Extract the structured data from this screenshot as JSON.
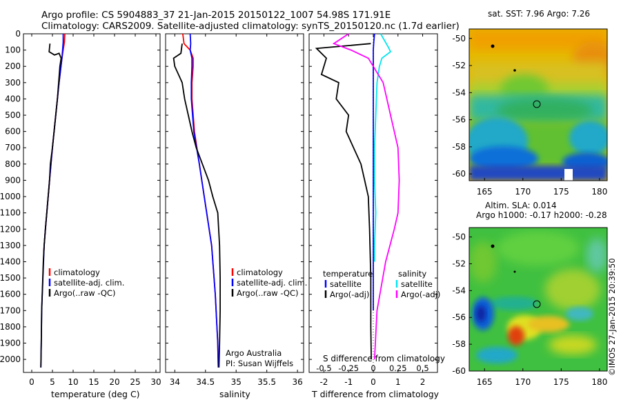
{
  "header": {
    "line1": "Argo profile: CS 5904883_37 21-Jan-2015 20150122_1007 54.98S 171.91E",
    "line2": "Climatology: CARS2009. Satellite-adjusted climatology: synTS_20150120.nc (1.7d earlier)"
  },
  "depth_ticks": [
    "0",
    "100",
    "200",
    "300",
    "400",
    "500",
    "600",
    "700",
    "800",
    "900",
    "1000",
    "1100",
    "1200",
    "1300",
    "1400",
    "1500",
    "1600",
    "1700",
    "1800",
    "1900",
    "2000"
  ],
  "colors": {
    "climatology": "#ff0000",
    "satellite": "#0000ff",
    "argo": "#000000",
    "sat_salinity": "#00e5ee",
    "argo_salinity_adj": "#ff00ff"
  },
  "chart_data": [
    {
      "type": "line",
      "xlabel": "temperature (deg C)",
      "ylabel": "",
      "xticks": [
        "0",
        "5",
        "10",
        "15",
        "20",
        "25",
        "30"
      ],
      "xlim": [
        -2,
        31
      ],
      "ylim": [
        2080,
        0
      ],
      "legend": {
        "position": "bottom-right",
        "entries": [
          "climatology",
          "satellite-adj. clim.",
          "Argo(..raw -QC)"
        ]
      },
      "series": [
        {
          "name": "climatology",
          "color": "#ff0000",
          "x": [
            8.0,
            7.9,
            7.3,
            6.6,
            5.8,
            5.0,
            4.3,
            3.8,
            3.3,
            3.0,
            2.9
          ],
          "y": [
            0,
            50,
            150,
            300,
            500,
            700,
            900,
            1050,
            1200,
            1300,
            1350
          ]
        },
        {
          "name": "satellite-adj. clim.",
          "color": "#0000ff",
          "x": [
            7.6,
            7.6,
            7.3,
            6.6,
            5.8,
            5.0,
            4.3,
            3.8,
            3.3,
            3.0,
            2.7,
            2.4,
            2.3,
            2.2
          ],
          "y": [
            0,
            50,
            150,
            300,
            500,
            700,
            900,
            1050,
            1200,
            1300,
            1500,
            1700,
            1900,
            2050
          ]
        },
        {
          "name": "Argo(..raw -QC)",
          "color": "#000000",
          "x": [
            4.4,
            4.2,
            5.5,
            6.6,
            7.1,
            6.8,
            6.5,
            6.2,
            5.8,
            5.0,
            4.5,
            4.3,
            3.8,
            3.3,
            3.0,
            2.8,
            2.6,
            2.4,
            2.3,
            2.2
          ],
          "y": [
            60,
            110,
            130,
            120,
            150,
            200,
            300,
            400,
            500,
            700,
            800,
            900,
            1050,
            1200,
            1300,
            1400,
            1550,
            1700,
            1900,
            2050
          ]
        }
      ]
    },
    {
      "type": "line",
      "xlabel": "salinity",
      "ylabel": "",
      "xticks": [
        "34",
        "34.5",
        "35",
        "35.5",
        "36"
      ],
      "xlim": [
        33.85,
        36.1
      ],
      "ylim": [
        2080,
        0
      ],
      "legend": {
        "position": "bottom-right",
        "entries": [
          "climatology",
          "satellite-adj. clim.",
          "Argo(..raw -QC)"
        ]
      },
      "annotations": [
        "Argo Australia",
        "PI: Susan Wijffels"
      ],
      "series": [
        {
          "name": "climatology",
          "color": "#ff0000",
          "x": [
            34.13,
            34.15,
            34.25,
            34.3,
            34.3,
            34.28,
            34.28,
            34.32,
            34.4,
            34.48,
            34.6,
            34.66,
            34.7,
            34.71
          ],
          "y": [
            0,
            60,
            100,
            150,
            200,
            300,
            400,
            600,
            800,
            1000,
            1300,
            1600,
            1900,
            2050
          ]
        },
        {
          "name": "satellite-adj. clim.",
          "color": "#0000ff",
          "x": [
            34.25,
            34.26,
            34.25,
            34.28,
            34.28,
            34.27,
            34.27,
            34.31,
            34.4,
            34.48,
            34.6,
            34.66,
            34.7,
            34.71
          ],
          "y": [
            0,
            60,
            100,
            150,
            200,
            300,
            400,
            600,
            800,
            1000,
            1300,
            1600,
            1900,
            2050
          ]
        },
        {
          "name": "Argo(..raw -QC)",
          "color": "#000000",
          "x": [
            34.12,
            34.1,
            33.98,
            34.0,
            34.12,
            34.16,
            34.22,
            34.28,
            34.35,
            34.45,
            34.55,
            34.62,
            34.7,
            34.73,
            34.74,
            34.74,
            34.73,
            34.72
          ],
          "y": [
            60,
            120,
            150,
            200,
            300,
            400,
            500,
            600,
            700,
            800,
            900,
            1000,
            1100,
            1300,
            1500,
            1700,
            1900,
            2050
          ]
        }
      ]
    },
    {
      "type": "line",
      "xlabel": "T difference from climatology",
      "ylabel": "",
      "xticks": [
        "-2",
        "-1",
        "0",
        "1",
        "2"
      ],
      "xlim": [
        -2.6,
        2.6
      ],
      "ylim": [
        2080,
        0
      ],
      "secondary_xlabel": "S difference from climatology",
      "secondary_xticks": [
        "-0.5",
        "-0.25",
        "0",
        "0.25",
        "0.5"
      ],
      "legend": {
        "position": "bottom",
        "groups": [
          "temperature",
          "salinity"
        ],
        "entries": [
          "satellite",
          "Argo(-adj)",
          "satellite",
          "Argo(-adj)"
        ]
      },
      "series": [
        {
          "name": "satellite",
          "group": "temperature",
          "color": "#0000ff",
          "x": [
            0.05,
            0.02,
            0.0,
            0.0,
            0.0,
            0.0,
            0.0,
            0.0,
            0.0,
            0.0,
            0.0
          ],
          "y": [
            0,
            50,
            100,
            300,
            500,
            700,
            900,
            1100,
            1300,
            1500,
            1700
          ]
        },
        {
          "name": "Argo(-adj)",
          "group": "temperature",
          "color": "#000000",
          "x": [
            -0.1,
            -2.3,
            -1.9,
            -2.1,
            -1.4,
            -1.5,
            -1.0,
            -1.1,
            -0.8,
            -0.5,
            -0.35,
            -0.2,
            -0.15,
            -0.1,
            -0.1,
            -0.08
          ],
          "y": [
            60,
            90,
            150,
            250,
            300,
            400,
            500,
            600,
            700,
            800,
            900,
            1000,
            1200,
            1500,
            1800,
            2000
          ]
        },
        {
          "name": "satellite",
          "group": "salinity",
          "color": "#00e5ee",
          "x": [
            0.3,
            0.6,
            0.7,
            0.35,
            0.25,
            0.15,
            0.1,
            0.05,
            0.05,
            0.1,
            0.05,
            0.05
          ],
          "y": [
            0,
            80,
            110,
            150,
            200,
            300,
            500,
            700,
            900,
            1100,
            1300,
            1400
          ]
        },
        {
          "name": "Argo(-adj)",
          "group": "salinity",
          "color": "#ff00ff",
          "x": [
            -1.0,
            -1.6,
            -0.9,
            -0.2,
            0.4,
            0.7,
            0.85,
            1.0,
            1.05,
            1.0,
            0.85,
            0.5,
            0.15,
            0.05
          ],
          "y": [
            0,
            60,
            100,
            150,
            300,
            500,
            600,
            700,
            900,
            1100,
            1200,
            1400,
            1700,
            2000
          ]
        }
      ]
    },
    {
      "type": "heatmap",
      "title": "sat. SST: 7.96  Argo: 7.26",
      "xticks": [
        "165",
        "170",
        "175",
        "180"
      ],
      "yticks": [
        "-50",
        "-52",
        "-54",
        "-56",
        "-58",
        "-60"
      ],
      "xlim": [
        163,
        181
      ],
      "ylim": [
        -60.5,
        -49.3
      ],
      "marker": {
        "lon": 171.91,
        "lat": -54.98
      }
    },
    {
      "type": "heatmap",
      "title": "Altim. SLA: 0.014",
      "subtitle": "Argo h1000: -0.17  h2000: -0.28",
      "xticks": [
        "165",
        "170",
        "175",
        "180"
      ],
      "yticks": [
        "-50",
        "-52",
        "-54",
        "-56",
        "-58",
        "-60"
      ],
      "xlim": [
        163,
        181
      ],
      "ylim": [
        -60,
        -49.3
      ],
      "marker": {
        "lon": 171.91,
        "lat": -54.98
      }
    }
  ],
  "footer": "©IMOS 27-Jan-2015 20:39:50"
}
